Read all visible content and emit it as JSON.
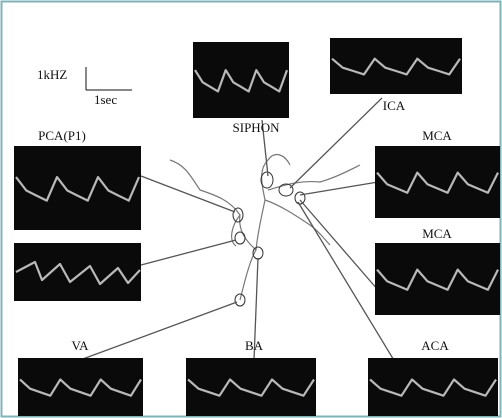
{
  "scale": {
    "frequency": "1kHZ",
    "time": "1sec"
  },
  "panels": [
    {
      "label": "SIPHON"
    },
    {
      "label": "ICA"
    },
    {
      "label": "PCA(P1)"
    },
    {
      "label": "MCA"
    },
    {
      "label": "MCA"
    },
    {
      "label": "VA"
    },
    {
      "label": "BA"
    },
    {
      "label": "ACA"
    }
  ]
}
